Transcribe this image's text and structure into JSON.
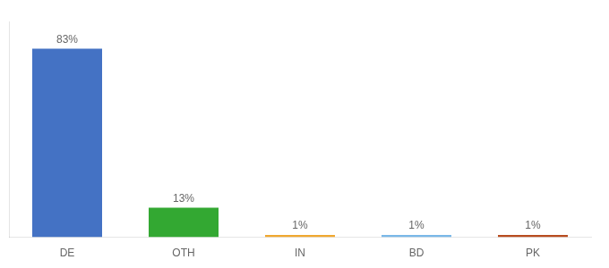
{
  "chart_data": {
    "type": "bar",
    "categories": [
      "DE",
      "OTH",
      "IN",
      "BD",
      "PK"
    ],
    "values": [
      83,
      13,
      1,
      1,
      1
    ],
    "value_labels": [
      "83%",
      "13%",
      "1%",
      "1%",
      "1%"
    ],
    "colors": [
      "#4472c4",
      "#33a832",
      "#f0a830",
      "#7ab8e8",
      "#b84c20"
    ],
    "ylim": [
      0,
      95
    ],
    "data_labels": true,
    "tick_labels": "x",
    "grid": false
  }
}
